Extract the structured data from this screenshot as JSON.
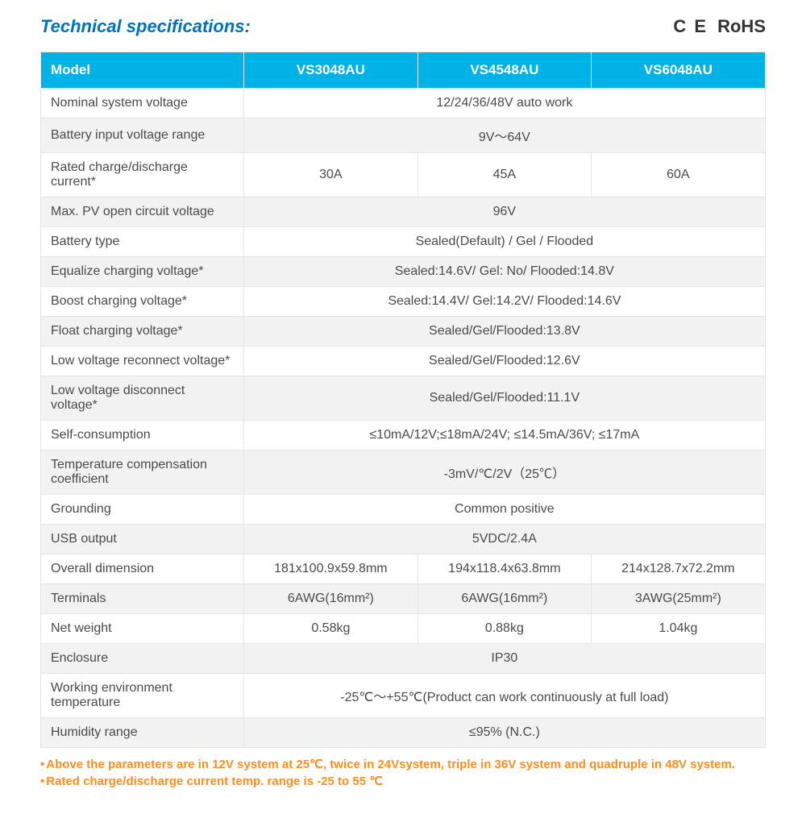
{
  "header": {
    "title": "Technical specifications:",
    "cert_ce": "C E",
    "cert_rohs": "RoHS"
  },
  "table": {
    "header_bg": "#00b3e6",
    "header_fg": "#ffffff",
    "row_odd_bg": "#ffffff",
    "row_even_bg": "#f2f2f2",
    "border_color": "#e5e5e5",
    "text_color": "#4a4a4a",
    "columns": {
      "model_label": "Model",
      "m1": "VS3048AU",
      "m2": "VS4548AU",
      "m3": "VS6048AU"
    },
    "rows": [
      {
        "label": "Nominal system voltage",
        "span": "12/24/36/48V auto work"
      },
      {
        "label": "Battery input voltage range",
        "span": "9V～64V"
      },
      {
        "label": "Rated charge/discharge current*",
        "v1": "30A",
        "v2": "45A",
        "v3": "60A"
      },
      {
        "label": "Max. PV open circuit voltage",
        "span": "96V"
      },
      {
        "label": "Battery type",
        "span": "Sealed(Default) / Gel / Flooded"
      },
      {
        "label": "Equalize charging voltage*",
        "span": "Sealed:14.6V/ Gel: No/ Flooded:14.8V"
      },
      {
        "label": "Boost charging voltage*",
        "span": "Sealed:14.4V/ Gel:14.2V/ Flooded:14.6V"
      },
      {
        "label": "Float charging voltage*",
        "span": "Sealed/Gel/Flooded:13.8V"
      },
      {
        "label": "Low voltage reconnect voltage*",
        "span": "Sealed/Gel/Flooded:12.6V"
      },
      {
        "label": "Low voltage disconnect voltage*",
        "span": "Sealed/Gel/Flooded:11.1V"
      },
      {
        "label": "Self-consumption",
        "span": "≤10mA/12V;≤18mA/24V; ≤14.5mA/36V; ≤17mA"
      },
      {
        "label": "Temperature compensation coefficient",
        "span": "-3mV/℃/2V（25℃）"
      },
      {
        "label": "Grounding",
        "span": "Common positive"
      },
      {
        "label": "USB  output",
        "span": "5VDC/2.4A"
      },
      {
        "label": "Overall dimension",
        "v1": "181x100.9x59.8mm",
        "v2": "194x118.4x63.8mm",
        "v3": "214x128.7x72.2mm"
      },
      {
        "label": "Terminals",
        "v1": "6AWG(16mm²)",
        "v2": "6AWG(16mm²)",
        "v3": "3AWG(25mm²)"
      },
      {
        "label": "Net weight",
        "v1": "0.58kg",
        "v2": "0.88kg",
        "v3": "1.04kg"
      },
      {
        "label": "Enclosure",
        "span": "IP30"
      },
      {
        "label": "Working environment temperature",
        "span": "-25℃～+55℃(Product can work continuously at full load)"
      },
      {
        "label": "Humidity range",
        "span": "≤95% (N.C.)"
      }
    ]
  },
  "footnotes": {
    "color": "#ff8c1a",
    "note1": "Above the parameters are in 12V system at 25℃, twice in 24Vsystem, triple in 36V system and    quadruple in 48V system.",
    "note2": "Rated charge/discharge current  temp. range is -25 to 55 ℃"
  }
}
